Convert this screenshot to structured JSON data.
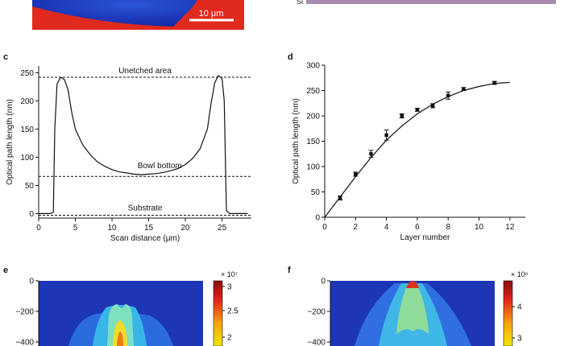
{
  "panels": {
    "c": "c",
    "d": "d",
    "e": "e",
    "f": "f",
    "top_left_scale_label": "10 μm",
    "top_right_partial_label": "Sl"
  },
  "chart_data": [
    {
      "panel": "c",
      "type": "line",
      "xlabel": "Scan distance (μm)",
      "ylabel": "Optical path length (nm)",
      "xlim": [
        0,
        29
      ],
      "ylim": [
        -8,
        262
      ],
      "x_ticks": [
        0,
        5,
        10,
        15,
        20,
        25
      ],
      "y_ticks": [
        0,
        50,
        100,
        150,
        200,
        250
      ],
      "series": [
        {
          "x": [
            0,
            1.5,
            2.0,
            2.2,
            2.5,
            3.0,
            3.5,
            4.0,
            4.5,
            5.0,
            6,
            7,
            8,
            9,
            10,
            11,
            12,
            13,
            14,
            15,
            16,
            17,
            18,
            19,
            20,
            21,
            22,
            23,
            23.5,
            24.0,
            24.5,
            25.0,
            25.3,
            25.6,
            26,
            27,
            28.5
          ],
          "y": [
            0,
            0,
            2,
            150,
            230,
            242,
            238,
            220,
            180,
            150,
            122,
            105,
            92,
            84,
            78,
            74,
            72,
            70,
            69,
            70,
            71,
            73,
            76,
            80,
            87,
            98,
            115,
            150,
            195,
            232,
            245,
            240,
            200,
            5,
            0,
            0,
            0
          ]
        }
      ],
      "reference_lines": [
        {
          "y": 242,
          "label": "Unetched area"
        },
        {
          "y": 66,
          "label": "Bowl bottom"
        },
        {
          "y": -3,
          "label": "Substrate"
        }
      ]
    },
    {
      "panel": "d",
      "type": "scatter",
      "xlabel": "Layer number",
      "ylabel": "Optical path length (nm)",
      "xlim": [
        0,
        13
      ],
      "ylim": [
        0,
        300
      ],
      "x_ticks": [
        0,
        2,
        4,
        6,
        8,
        10,
        12
      ],
      "y_ticks": [
        0,
        50,
        100,
        150,
        200,
        250,
        300
      ],
      "points": {
        "x": [
          1,
          2,
          3,
          4,
          5,
          6,
          7,
          8,
          9,
          11
        ],
        "y": [
          38,
          85,
          125,
          162,
          200,
          212,
          220,
          240,
          253,
          265
        ],
        "err": [
          4,
          4,
          7,
          10,
          4,
          3,
          4,
          7,
          3,
          3
        ]
      },
      "fit": {
        "x": [
          0,
          1,
          2,
          3,
          4,
          5,
          6,
          7,
          8,
          9,
          10,
          11,
          12
        ],
        "y": [
          0,
          40,
          80,
          118,
          152,
          180,
          204,
          223,
          238,
          250,
          258,
          264,
          266
        ]
      }
    },
    {
      "panel": "e",
      "type": "heatmap",
      "y_ticks": [
        "0",
        "−200",
        "−400"
      ],
      "colorbar_exponent": "× 10⁷",
      "colorbar_ticks": [
        "3",
        "2.5",
        "2"
      ]
    },
    {
      "panel": "f",
      "type": "heatmap",
      "y_ticks": [
        "0",
        "−200",
        "−400"
      ],
      "colorbar_exponent": "× 10⁶",
      "colorbar_ticks": [
        "4",
        "3"
      ]
    }
  ]
}
